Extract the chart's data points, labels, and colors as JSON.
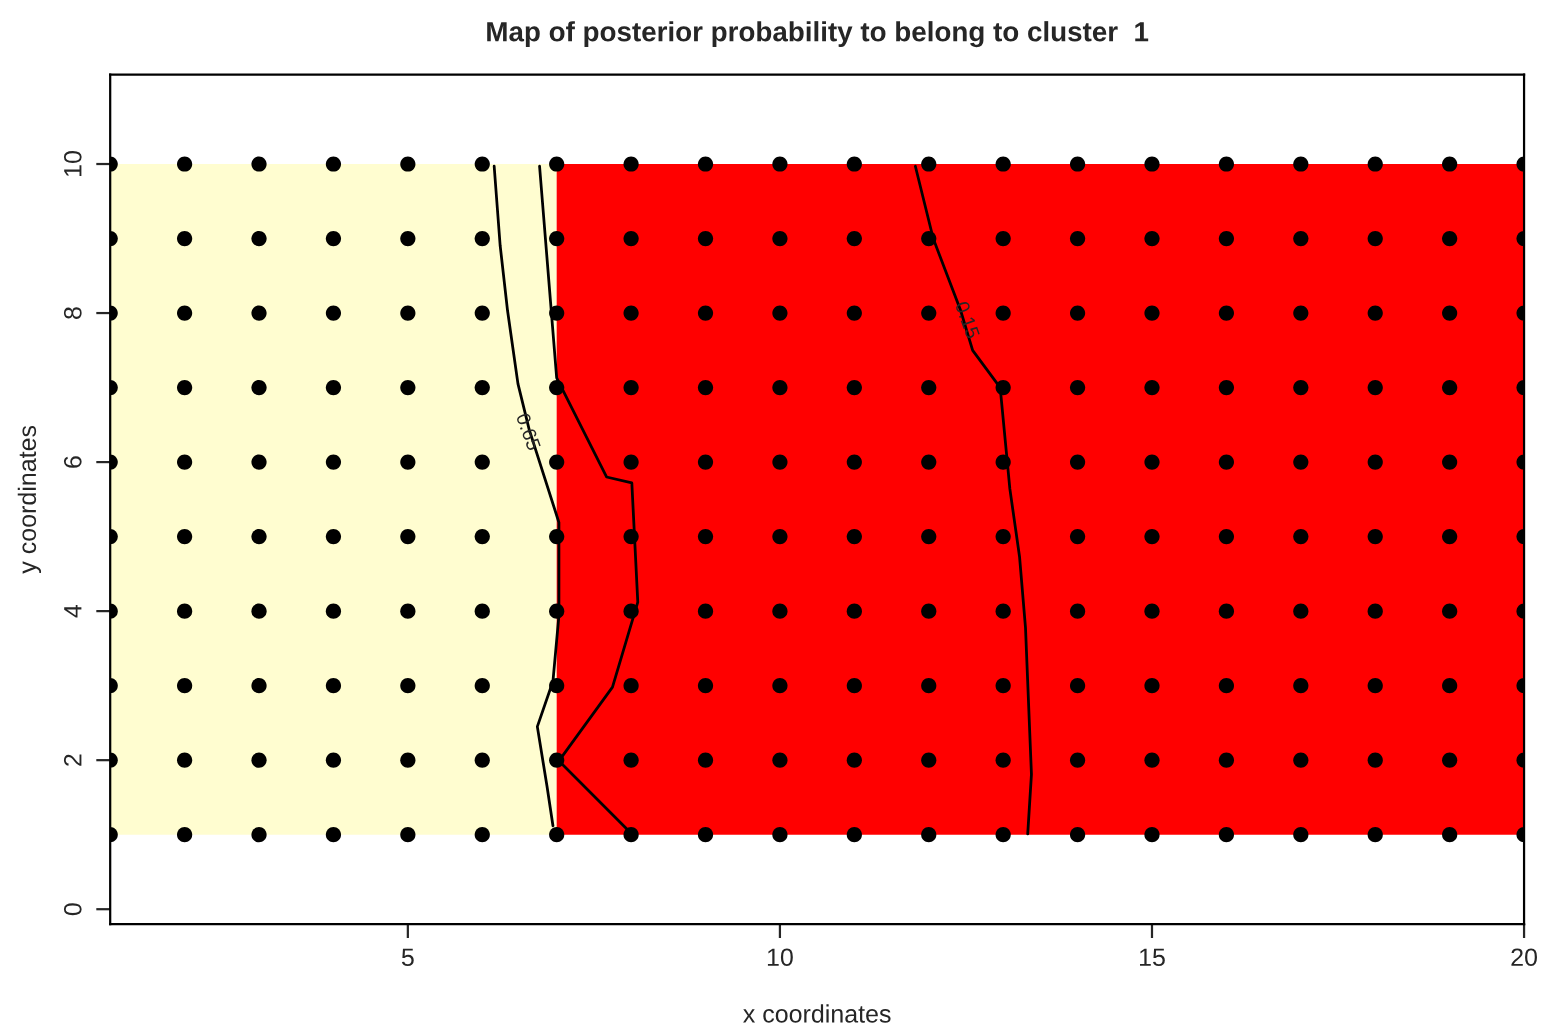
{
  "chart_data": {
    "type": "scatter",
    "title": "Map of posterior probability to belong to cluster  1",
    "xlabel": "x coordinates",
    "ylabel": "y coordinates",
    "xlim": [
      1,
      20
    ],
    "ylim": [
      -0.2,
      11.2
    ],
    "xticks": [
      5,
      10,
      15,
      20
    ],
    "yticks": [
      0,
      2,
      4,
      6,
      8,
      10
    ],
    "grid": false,
    "legend": false,
    "bands": [
      {
        "axis": "x",
        "from": 1,
        "to": 7,
        "color": "#fffdd0"
      },
      {
        "axis": "x",
        "from": 7,
        "to": 20,
        "color": "#ff0000"
      }
    ],
    "series": [
      {
        "type": "line",
        "color": "#000000",
        "line_style": "solid",
        "x": [
          6.16,
          6.24,
          6.34,
          6.48,
          6.63,
          7.03,
          7.03,
          6.95,
          6.74,
          6.87,
          6.95
        ],
        "values": [
          9.97,
          8.91,
          8.03,
          7.05,
          6.44,
          5.19,
          3.94,
          3.06,
          2.45,
          1.65,
          1.12
        ]
      },
      {
        "type": "line",
        "color": "#000000",
        "line_style": "solid",
        "x": [
          6.77,
          7.0,
          7.67,
          8.01,
          8.09,
          7.75,
          7.03,
          8.01
        ],
        "values": [
          9.97,
          7.13,
          5.8,
          5.72,
          4.12,
          2.98,
          1.99,
          1.01
        ]
      },
      {
        "type": "line",
        "color": "#000000",
        "line_style": "solid",
        "x": [
          11.82,
          12.06,
          12.43,
          12.59,
          12.96,
          13.09,
          13.22,
          13.3,
          13.38,
          13.33
        ],
        "values": [
          9.97,
          9.0,
          8.03,
          7.5,
          7.0,
          5.64,
          4.73,
          3.78,
          1.81,
          1.01
        ]
      },
      {
        "marker": "circle",
        "color": "#000000",
        "x": [
          1,
          2,
          3,
          4,
          5,
          6,
          7,
          8,
          9,
          10,
          11,
          12,
          13,
          14,
          15,
          16,
          17,
          18,
          19,
          20,
          1,
          2,
          3,
          4,
          5,
          6,
          7,
          8,
          9,
          10,
          11,
          12,
          13,
          14,
          15,
          16,
          17,
          18,
          19,
          20,
          1,
          2,
          3,
          4,
          5,
          6,
          7,
          8,
          9,
          10,
          11,
          12,
          13,
          14,
          15,
          16,
          17,
          18,
          19,
          20,
          1,
          2,
          3,
          4,
          5,
          6,
          7,
          8,
          9,
          10,
          11,
          12,
          13,
          14,
          15,
          16,
          17,
          18,
          19,
          20,
          1,
          2,
          3,
          4,
          5,
          6,
          7,
          8,
          9,
          10,
          11,
          12,
          13,
          14,
          15,
          16,
          17,
          18,
          19,
          20,
          1,
          2,
          3,
          4,
          5,
          6,
          7,
          8,
          9,
          10,
          11,
          12,
          13,
          14,
          15,
          16,
          17,
          18,
          19,
          20,
          1,
          2,
          3,
          4,
          5,
          6,
          7,
          8,
          9,
          10,
          11,
          12,
          13,
          14,
          15,
          16,
          17,
          18,
          19,
          20,
          1,
          2,
          3,
          4,
          5,
          6,
          7,
          8,
          9,
          10,
          11,
          12,
          13,
          14,
          15,
          16,
          17,
          18,
          19,
          20,
          1,
          2,
          3,
          4,
          5,
          6,
          7,
          8,
          9,
          10,
          11,
          12,
          13,
          14,
          15,
          16,
          17,
          18,
          19,
          20,
          1,
          2,
          3,
          4,
          5,
          6,
          7,
          8,
          9,
          10,
          11,
          12,
          13,
          14,
          15,
          16,
          17,
          18,
          19,
          20
        ],
        "values": [
          1,
          1,
          1,
          1,
          1,
          1,
          1,
          1,
          1,
          1,
          1,
          1,
          1,
          1,
          1,
          1,
          1,
          1,
          1,
          1,
          2,
          2,
          2,
          2,
          2,
          2,
          2,
          2,
          2,
          2,
          2,
          2,
          2,
          2,
          2,
          2,
          2,
          2,
          2,
          2,
          3,
          3,
          3,
          3,
          3,
          3,
          3,
          3,
          3,
          3,
          3,
          3,
          3,
          3,
          3,
          3,
          3,
          3,
          3,
          3,
          4,
          4,
          4,
          4,
          4,
          4,
          4,
          4,
          4,
          4,
          4,
          4,
          4,
          4,
          4,
          4,
          4,
          4,
          4,
          4,
          5,
          5,
          5,
          5,
          5,
          5,
          5,
          5,
          5,
          5,
          5,
          5,
          5,
          5,
          5,
          5,
          5,
          5,
          5,
          5,
          6,
          6,
          6,
          6,
          6,
          6,
          6,
          6,
          6,
          6,
          6,
          6,
          6,
          6,
          6,
          6,
          6,
          6,
          6,
          6,
          7,
          7,
          7,
          7,
          7,
          7,
          7,
          7,
          7,
          7,
          7,
          7,
          7,
          7,
          7,
          7,
          7,
          7,
          7,
          7,
          8,
          8,
          8,
          8,
          8,
          8,
          8,
          8,
          8,
          8,
          8,
          8,
          8,
          8,
          8,
          8,
          8,
          8,
          8,
          8,
          9,
          9,
          9,
          9,
          9,
          9,
          9,
          9,
          9,
          9,
          9,
          9,
          9,
          9,
          9,
          9,
          9,
          9,
          9,
          9,
          10,
          10,
          10,
          10,
          10,
          10,
          10,
          10,
          10,
          10,
          10,
          10,
          10,
          10,
          10,
          10,
          10,
          10,
          10,
          10
        ]
      }
    ],
    "annotations": [
      {
        "text": "0.65",
        "x": 6.6,
        "y": 6.4
      },
      {
        "text": "0.15",
        "x": 12.5,
        "y": 7.9
      }
    ]
  }
}
